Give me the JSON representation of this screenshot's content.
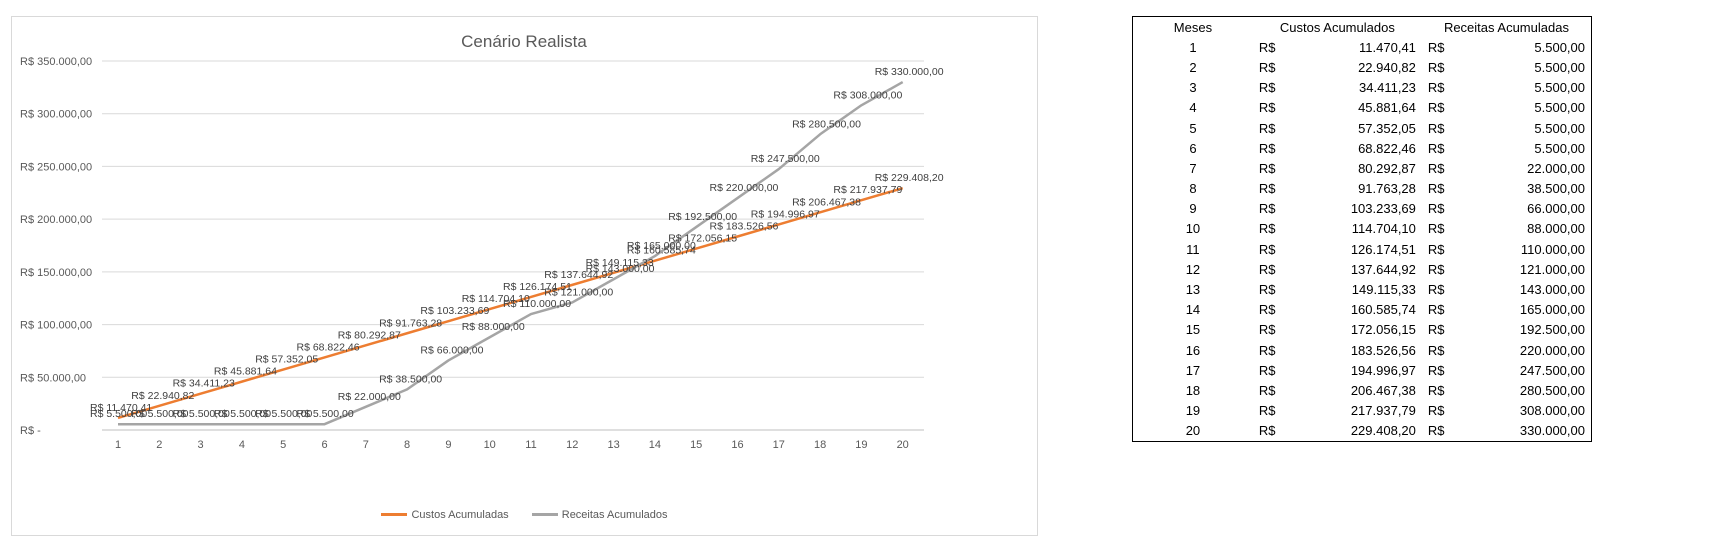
{
  "chart_data": {
    "type": "line",
    "title": "Cenário Realista",
    "xlabel": "",
    "ylabel": "",
    "categories": [
      "1",
      "2",
      "3",
      "4",
      "5",
      "6",
      "7",
      "8",
      "9",
      "10",
      "11",
      "12",
      "13",
      "14",
      "15",
      "16",
      "17",
      "18",
      "19",
      "20"
    ],
    "ylim": [
      0,
      350000
    ],
    "yticks": [
      {
        "value": 0,
        "label": "R$ -"
      },
      {
        "value": 50000,
        "label": "R$ 50.000,00"
      },
      {
        "value": 100000,
        "label": "R$ 100.000,00"
      },
      {
        "value": 150000,
        "label": "R$ 150.000,00"
      },
      {
        "value": 200000,
        "label": "R$ 200.000,00"
      },
      {
        "value": 250000,
        "label": "R$ 250.000,00"
      },
      {
        "value": 300000,
        "label": "R$ 300.000,00"
      },
      {
        "value": 350000,
        "label": "R$ 350.000,00"
      }
    ],
    "grid": true,
    "legend_position": "bottom",
    "series": [
      {
        "name": "Custos Acumuladas",
        "color": "#ED7D31",
        "values": [
          11470.41,
          22940.82,
          34411.23,
          45881.64,
          57352.05,
          68822.46,
          80292.87,
          91763.28,
          103233.69,
          114704.1,
          126174.51,
          137644.92,
          149115.33,
          160585.74,
          172056.15,
          183526.56,
          194996.97,
          206467.38,
          217937.79,
          229408.2
        ],
        "labels": [
          "R$ 11.470,41",
          "R$ 22.940,82",
          "R$ 34.411,23",
          "R$ 45.881,64",
          "R$ 57.352,05",
          "R$ 68.822,46",
          "R$ 80.292,87",
          "R$ 91.763,28",
          "R$ 103.233,69",
          "R$ 114.704,10",
          "R$ 126.174,51",
          "R$ 137.644,92",
          "R$ 149.115,33",
          "R$ 160.585,74",
          "R$ 172.056,15",
          "R$ 183.526,56",
          "R$ 194.996,97",
          "R$ 206.467,38",
          "R$ 217.937,79",
          "R$ 229.408,20"
        ]
      },
      {
        "name": "Receitas Acumulados",
        "color": "#A5A5A5",
        "values": [
          5500,
          5500,
          5500,
          5500,
          5500,
          5500,
          22000,
          38500,
          66000,
          88000,
          110000,
          121000,
          143000,
          165000,
          192500,
          220000,
          247500,
          280500,
          308000,
          330000
        ],
        "labels": [
          "R$ 5.500,00",
          "R$ 5.500,00",
          "R$ 5.500,00",
          "R$ 5.500,00",
          "R$ 5.500,00",
          "R$ 5.500,00",
          "R$ 22.000,00",
          "R$ 38.500,00",
          "R$ 66.000,00",
          "R$ 88.000,00",
          "R$ 110.000,00",
          "R$ 121.000,00",
          "R$ 143.000,00",
          "R$ 165.000,00",
          "R$ 192.500,00",
          "R$ 220.000,00",
          "R$ 247.500,00",
          "R$ 280.500,00",
          "R$ 308.000,00",
          "R$ 330.000,00"
        ]
      }
    ]
  },
  "table": {
    "headers": {
      "meses": "Meses",
      "custos": "Custos Acumulados",
      "receitas": "Receitas Acumuladas"
    },
    "currency": "R$",
    "rows": [
      {
        "mes": "1",
        "custos": "11.470,41",
        "receitas": "5.500,00"
      },
      {
        "mes": "2",
        "custos": "22.940,82",
        "receitas": "5.500,00"
      },
      {
        "mes": "3",
        "custos": "34.411,23",
        "receitas": "5.500,00"
      },
      {
        "mes": "4",
        "custos": "45.881,64",
        "receitas": "5.500,00"
      },
      {
        "mes": "5",
        "custos": "57.352,05",
        "receitas": "5.500,00"
      },
      {
        "mes": "6",
        "custos": "68.822,46",
        "receitas": "5.500,00"
      },
      {
        "mes": "7",
        "custos": "80.292,87",
        "receitas": "22.000,00"
      },
      {
        "mes": "8",
        "custos": "91.763,28",
        "receitas": "38.500,00"
      },
      {
        "mes": "9",
        "custos": "103.233,69",
        "receitas": "66.000,00"
      },
      {
        "mes": "10",
        "custos": "114.704,10",
        "receitas": "88.000,00"
      },
      {
        "mes": "11",
        "custos": "126.174,51",
        "receitas": "110.000,00"
      },
      {
        "mes": "12",
        "custos": "137.644,92",
        "receitas": "121.000,00"
      },
      {
        "mes": "13",
        "custos": "149.115,33",
        "receitas": "143.000,00"
      },
      {
        "mes": "14",
        "custos": "160.585,74",
        "receitas": "165.000,00"
      },
      {
        "mes": "15",
        "custos": "172.056,15",
        "receitas": "192.500,00"
      },
      {
        "mes": "16",
        "custos": "183.526,56",
        "receitas": "220.000,00"
      },
      {
        "mes": "17",
        "custos": "194.996,97",
        "receitas": "247.500,00"
      },
      {
        "mes": "18",
        "custos": "206.467,38",
        "receitas": "280.500,00"
      },
      {
        "mes": "19",
        "custos": "217.937,79",
        "receitas": "308.000,00"
      },
      {
        "mes": "20",
        "custos": "229.408,20",
        "receitas": "330.000,00"
      }
    ]
  }
}
